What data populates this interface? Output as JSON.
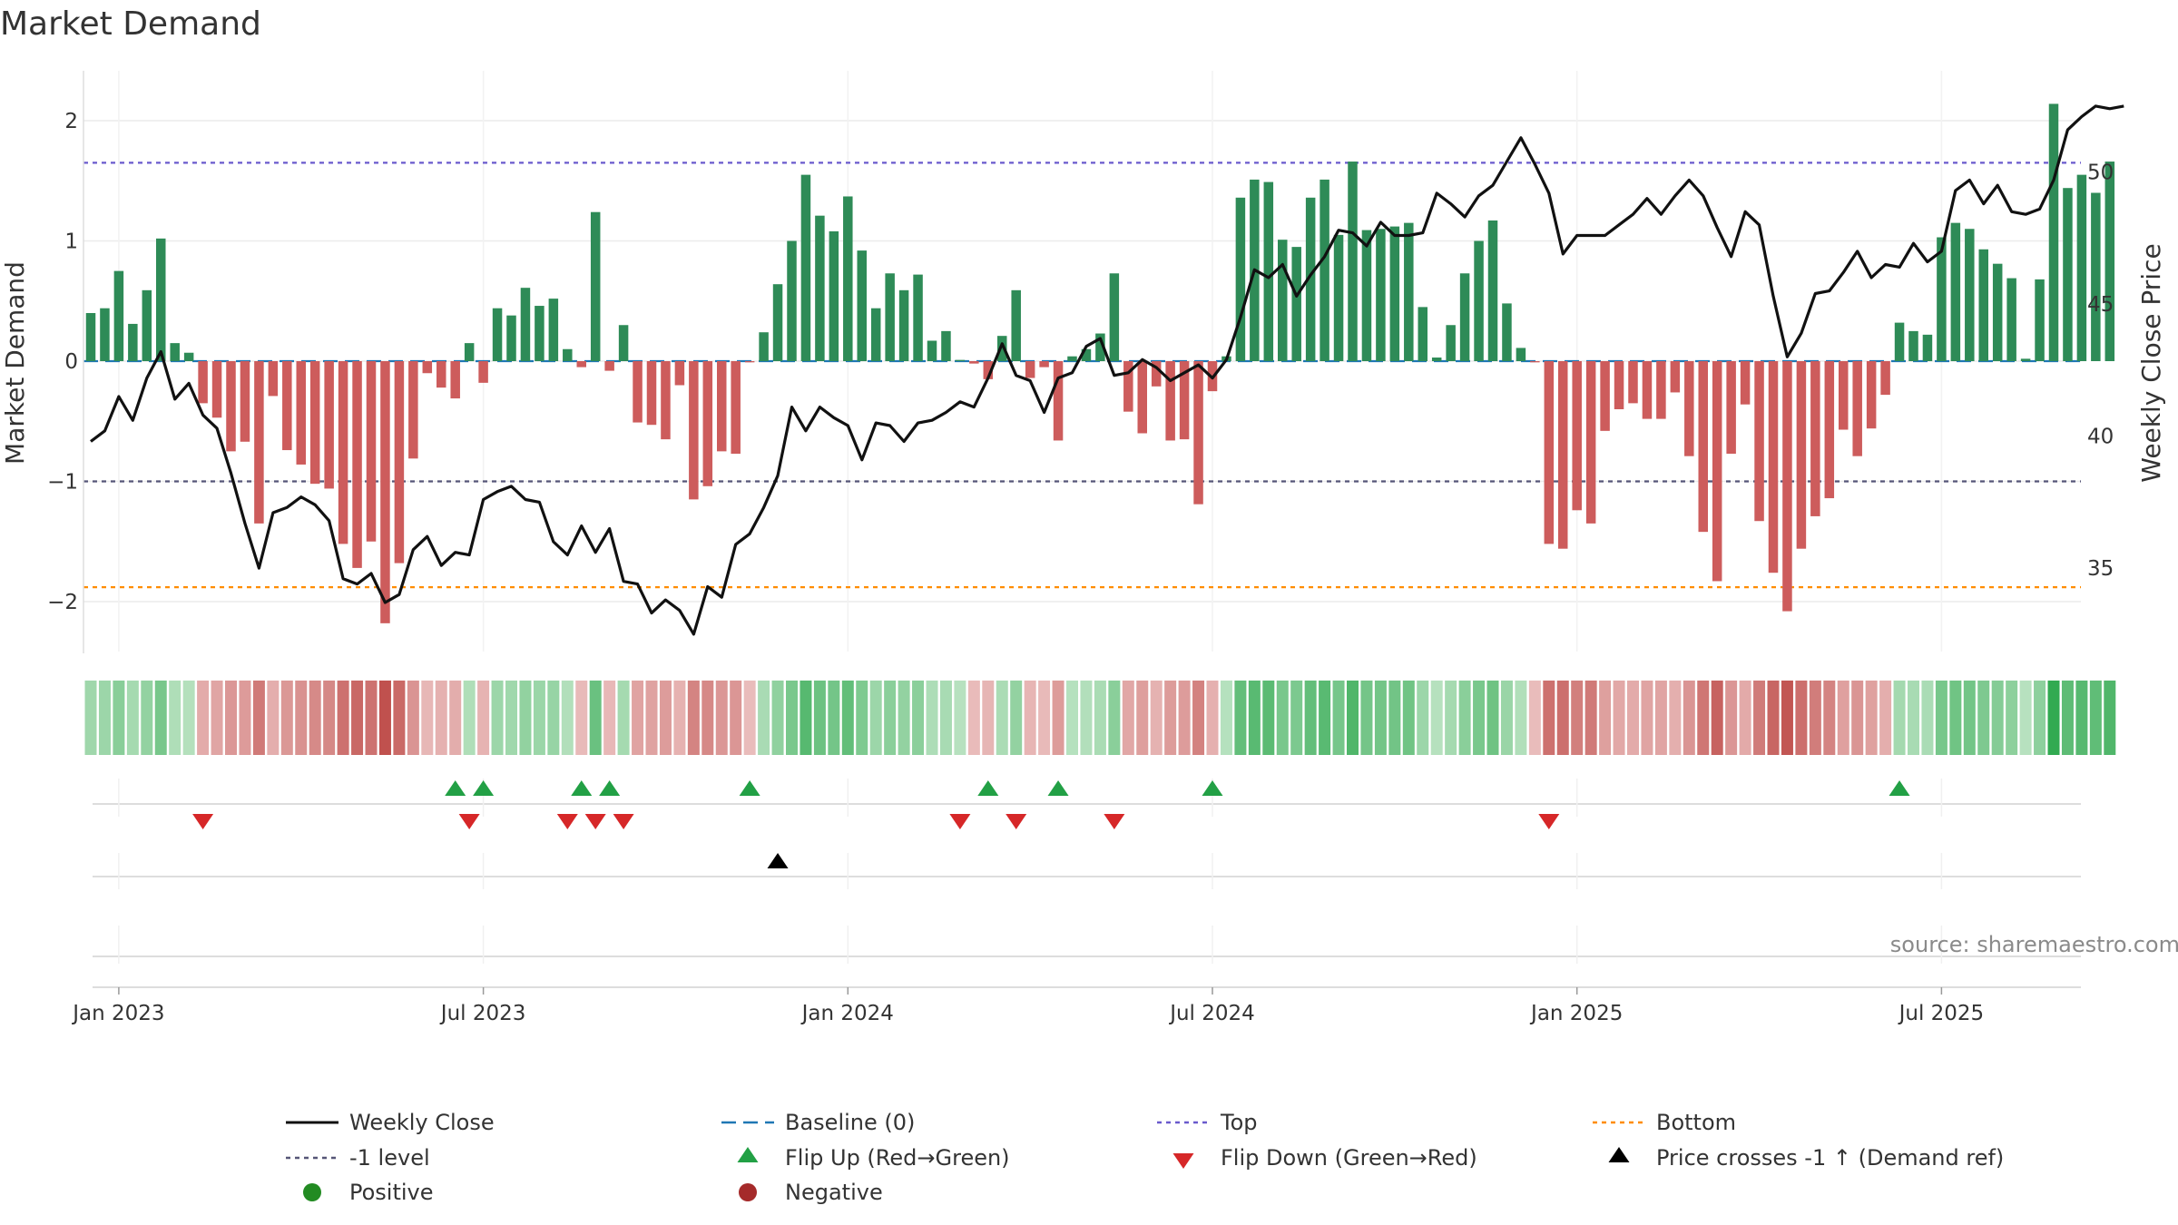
{
  "title": "Market Demand",
  "source": "source: sharemaestro.com",
  "colors": {
    "positive": "#2e8b57",
    "negative": "#cd5c5c",
    "price_line": "#111111",
    "top_line": "#6a5acd",
    "bottom_line": "#ff8c00",
    "minus1_line": "#555577",
    "baseline": "#1f77b4",
    "flip_up": "#22a045",
    "flip_down": "#d62728",
    "cross": "#000000"
  },
  "chart_data": {
    "type": "bar",
    "title": "Market Demand",
    "ylabel": "Market Demand",
    "y2label": "Weekly Close Price",
    "ylim": [
      -2.4,
      2.4
    ],
    "y2lim": [
      31.5,
      53.5
    ],
    "y_ticks": [
      2,
      1,
      0,
      -1,
      -2
    ],
    "y_tick_labels": [
      "2",
      "1",
      "0",
      "−1",
      "−2"
    ],
    "y2_ticks": [
      50,
      45,
      40,
      35
    ],
    "y2_tick_labels": [
      "50",
      "45",
      "40",
      "35"
    ],
    "x_ticks": [
      {
        "week": 2,
        "label": "Jan 2023"
      },
      {
        "week": 28,
        "label": "Jul 2023"
      },
      {
        "week": 54,
        "label": "Jan 2024"
      },
      {
        "week": 80,
        "label": "Jul 2024"
      },
      {
        "week": 106,
        "label": "Jan 2025"
      },
      {
        "week": 132,
        "label": "Jul 2025"
      }
    ],
    "reference_lines": {
      "top": 1.65,
      "minus_one": -1.0,
      "bottom": -1.88,
      "baseline": 0
    },
    "demand": [
      0.4,
      0.44,
      0.75,
      0.31,
      0.59,
      1.02,
      0.15,
      0.07,
      -0.35,
      -0.47,
      -0.75,
      -0.67,
      -1.35,
      -0.29,
      -0.74,
      -0.86,
      -1.02,
      -1.06,
      -1.52,
      -1.72,
      -1.5,
      -2.18,
      -1.68,
      -0.81,
      -0.1,
      -0.22,
      -0.31,
      0.15,
      -0.18,
      0.44,
      0.38,
      0.61,
      0.46,
      0.52,
      0.1,
      -0.05,
      1.24,
      -0.08,
      0.3,
      -0.51,
      -0.53,
      -0.65,
      -0.2,
      -1.15,
      -1.04,
      -0.75,
      -0.77,
      -0.01,
      0.24,
      0.64,
      1.0,
      1.55,
      1.21,
      1.08,
      1.37,
      0.92,
      0.44,
      0.73,
      0.59,
      0.72,
      0.17,
      0.25,
      0.01,
      -0.02,
      -0.15,
      0.21,
      0.59,
      -0.14,
      -0.05,
      -0.66,
      0.04,
      0.1,
      0.23,
      0.73,
      -0.42,
      -0.6,
      -0.21,
      -0.66,
      -0.65,
      -1.19,
      -0.25,
      0.04,
      1.36,
      1.51,
      1.49,
      1.01,
      0.95,
      1.36,
      1.51,
      1.05,
      1.66,
      1.09,
      1.1,
      1.12,
      1.15,
      0.45,
      0.03,
      0.3,
      0.73,
      1.0,
      1.17,
      0.48,
      0.11,
      -0.01,
      -1.52,
      -1.56,
      -1.24,
      -1.35,
      -0.58,
      -0.4,
      -0.35,
      -0.48,
      -0.48,
      -0.26,
      -0.79,
      -1.42,
      -1.83,
      -0.77,
      -0.36,
      -1.33,
      -1.76,
      -2.08,
      -1.56,
      -1.29,
      -1.14,
      -0.57,
      -0.79,
      -0.56,
      -0.28,
      0.32,
      0.25,
      0.22,
      1.03,
      1.15,
      1.1,
      0.93,
      0.81,
      0.69,
      0.02,
      0.68,
      2.14,
      1.44,
      1.55,
      1.4,
      1.66
    ],
    "price": [
      39.8,
      40.2,
      41.5,
      40.6,
      42.2,
      43.2,
      41.4,
      42.0,
      40.8,
      40.3,
      38.6,
      36.7,
      35.0,
      37.1,
      37.3,
      37.7,
      37.4,
      36.8,
      34.6,
      34.4,
      34.8,
      33.7,
      34.0,
      35.7,
      36.2,
      35.1,
      35.6,
      35.5,
      37.6,
      37.9,
      38.1,
      37.6,
      37.5,
      36.0,
      35.5,
      36.6,
      35.6,
      36.5,
      34.5,
      34.4,
      33.3,
      33.8,
      33.4,
      32.5,
      34.3,
      33.9,
      35.9,
      36.3,
      37.3,
      38.5,
      41.1,
      40.2,
      41.1,
      40.7,
      40.4,
      39.1,
      40.5,
      40.4,
      39.8,
      40.5,
      40.6,
      40.9,
      41.3,
      41.1,
      42.2,
      43.5,
      42.3,
      42.1,
      40.9,
      42.2,
      42.4,
      43.4,
      43.7,
      42.3,
      42.4,
      42.9,
      42.6,
      42.1,
      42.4,
      42.7,
      42.2,
      42.9,
      44.5,
      46.3,
      46.0,
      46.5,
      45.3,
      46.1,
      46.8,
      47.8,
      47.7,
      47.2,
      48.1,
      47.6,
      47.6,
      47.7,
      49.2,
      48.8,
      48.3,
      49.1,
      49.5,
      50.4,
      51.3,
      50.3,
      49.2,
      46.9,
      47.6,
      47.6,
      47.6,
      48.0,
      48.4,
      49.0,
      48.4,
      49.1,
      49.7,
      49.1,
      47.9,
      46.8,
      48.5,
      48.0,
      45.3,
      43.0,
      43.9,
      45.4,
      45.5,
      46.2,
      47.0,
      46.0,
      46.5,
      46.4,
      47.3,
      46.6,
      47.0,
      49.3,
      49.7,
      48.8,
      49.5,
      48.5,
      48.4,
      48.6,
      49.7,
      51.6,
      52.1,
      52.5,
      52.4,
      52.5
    ],
    "flip_up_weeks": [
      26,
      28,
      35,
      37,
      47,
      64,
      69,
      80,
      129
    ],
    "flip_down_weeks": [
      8,
      27,
      34,
      36,
      38,
      62,
      66,
      73,
      104
    ],
    "price_cross_weeks": [
      49
    ]
  },
  "legend": [
    {
      "key": "weekly_close",
      "label": "Weekly Close"
    },
    {
      "key": "baseline",
      "label": "Baseline (0)"
    },
    {
      "key": "top",
      "label": "Top"
    },
    {
      "key": "bottom",
      "label": "Bottom"
    },
    {
      "key": "minus1",
      "label": "-1 level"
    },
    {
      "key": "flip_up",
      "label": "Flip Up (Red→Green)"
    },
    {
      "key": "flip_down",
      "label": "Flip Down (Green→Red)"
    },
    {
      "key": "price_cross",
      "label": "Price crosses -1 ↑ (Demand ref)"
    },
    {
      "key": "positive",
      "label": "Positive"
    },
    {
      "key": "negative",
      "label": "Negative"
    }
  ]
}
